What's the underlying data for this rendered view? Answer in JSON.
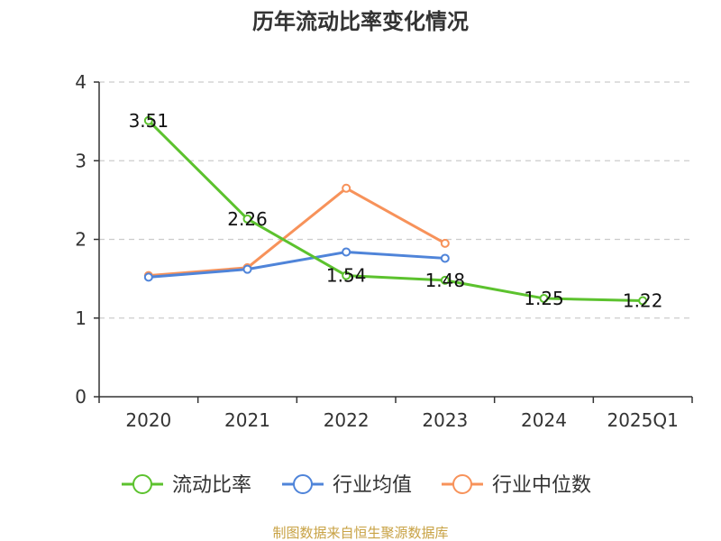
{
  "chart_data": {
    "type": "line",
    "title": "历年流动比率变化情况",
    "categories": [
      "2020",
      "2021",
      "2022",
      "2023",
      "2024",
      "2025Q1"
    ],
    "ylim": [
      0,
      4
    ],
    "yticks": [
      "0",
      "1",
      "2",
      "3",
      "4"
    ],
    "grid": true,
    "legend_position": "bottom",
    "series": [
      {
        "name": "流动比率",
        "color": "#5cc22e",
        "values": [
          3.51,
          2.26,
          1.54,
          1.48,
          1.25,
          1.22
        ],
        "labels": [
          "3.51",
          "2.26",
          "1.54",
          "1.48",
          "1.25",
          "1.22"
        ]
      },
      {
        "name": "行业均值",
        "color": "#4f84d9",
        "values": [
          1.52,
          1.62,
          1.84,
          1.76,
          null,
          null
        ]
      },
      {
        "name": "行业中位数",
        "color": "#f7925a",
        "values": [
          1.54,
          1.64,
          2.65,
          1.95,
          null,
          null
        ]
      }
    ],
    "source": "制图数据来自恒生聚源数据库"
  }
}
